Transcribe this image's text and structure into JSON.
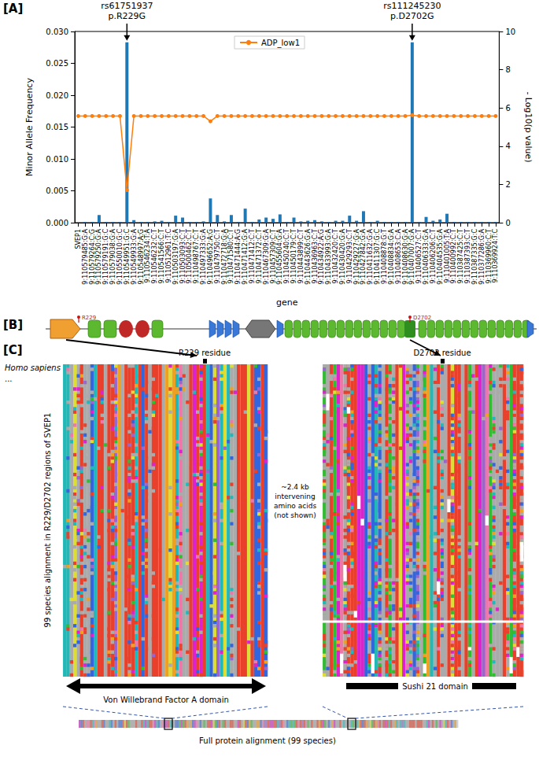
{
  "panel_labels": [
    "[A]",
    "[B]",
    "[C]"
  ],
  "chart_data": {
    "type": "bar",
    "xlabel": "gene",
    "ylabel": "Minor Allele Frequency",
    "y2label": "- Log10(p value)",
    "categories": [
      "SVEP1",
      "9:110579485:G:A",
      "9:110579264:C:G",
      "9:110579250:G:A",
      "9:110579191:G:C",
      "9:110579038:G:A",
      "9:110550010:G:C",
      "9:110549951:G:C",
      "9:110549933:G:A",
      "9:110548997:A:G",
      "9:110546234:T:A",
      "9:110546232:C:T",
      "9:110541566:C:T",
      "9:110512961:T:C",
      "9:110503197:G:A",
      "9:110503093:C:T",
      "9:110500462:C:T",
      "9:110498767:C:T",
      "9:110497333:G:A",
      "9:110496652:A:G",
      "9:110479750:C:T",
      "9:110472718:G:A",
      "9:110471580:C:T",
      "9:110471444:A:G",
      "9:110471412:G:A",
      "9:110471412:C:T",
      "9:110471372:C:T",
      "9:110467309:G:A",
      "9:110457309:C:T",
      "9:110455604:G:A",
      "9:110450240:C:T",
      "9:110450179:C:T",
      "9:110443899:C:T",
      "9:110443626:G:A",
      "9:110436963:C:T",
      "9:110434922:A:G",
      "9:110433993:G:A",
      "9:110432420:C:T",
      "9:110430420:G:A",
      "9:110429293:C:T",
      "9:110429227:G:A",
      "9:110427842:G:A",
      "9:110411632:G:A",
      "9:110411307:G:C",
      "9:110408878:G:T",
      "9:110408834:G:A",
      "9:110408653:C:A",
      "9:110408630:G:A",
      "9:110407007:G:A",
      "9:110406527:C:T",
      "9:110406333:G:A",
      "9:110406206:C:T",
      "9:110404535:G:A",
      "9:110401005:T:A",
      "9:110400992:C:T",
      "9:110387425:C:T",
      "9:110387393:C:T",
      "9:110387335:G:C",
      "9:110377286:G:A",
      "9:110369960:C:T",
      "9:110369924:T:C"
    ],
    "values": [
      0,
      0.0001,
      0.0001,
      0.0012,
      0.0001,
      0.0001,
      0.0001,
      0.0283,
      0.0004,
      0.0001,
      0.0001,
      0.0002,
      0.0003,
      0.0001,
      0.0011,
      0.0008,
      0.0001,
      0.0001,
      0.0002,
      0.0038,
      0.0012,
      0.0002,
      0.0012,
      0.0001,
      0.0022,
      0.0001,
      0.0005,
      0.0008,
      0.0006,
      0.0013,
      0.0001,
      0.0008,
      0.0002,
      0.0003,
      0.0004,
      0.0002,
      0.0001,
      0.0003,
      0.0003,
      0.0011,
      0.0003,
      0.0018,
      0.0001,
      0.0003,
      0.0001,
      0.0001,
      0.0001,
      0.0001,
      0.0283,
      0.0001,
      0.0009,
      0.0003,
      0.0005,
      0.0014,
      0.0001,
      0.0001,
      0.0001,
      0.0001,
      0.0001,
      0.0001,
      0.0001
    ],
    "color": "#1f77b4",
    "series": [
      {
        "name": "ADP_low1",
        "type": "line",
        "axis": "y2",
        "color": "#ff7f0e",
        "marker": "circle",
        "line_style": "solid",
        "values": [
          5.58,
          5.58,
          5.58,
          5.58,
          5.58,
          5.58,
          5.58,
          1.7,
          5.58,
          5.58,
          5.58,
          5.58,
          5.58,
          5.58,
          5.58,
          5.58,
          5.58,
          5.58,
          5.58,
          5.3,
          5.58,
          5.58,
          5.58,
          5.58,
          5.58,
          5.58,
          5.58,
          5.58,
          5.58,
          5.58,
          5.58,
          5.58,
          5.58,
          5.58,
          5.58,
          5.58,
          5.58,
          5.58,
          5.58,
          5.58,
          5.58,
          5.58,
          5.58,
          5.58,
          5.58,
          5.58,
          5.58,
          5.58,
          5.62,
          5.58,
          5.58,
          5.58,
          5.58,
          5.58,
          5.58,
          5.58,
          5.58,
          5.58,
          5.58,
          5.58,
          5.58
        ]
      }
    ],
    "ylim": [
      0,
      0.03
    ],
    "yticks": [
      {
        "value": 0,
        "label": "0.000"
      },
      {
        "value": 0.005,
        "label": "0.005"
      },
      {
        "value": 0.01,
        "label": "0.010"
      },
      {
        "value": 0.015,
        "label": "0.015"
      },
      {
        "value": 0.02,
        "label": "0.020"
      },
      {
        "value": 0.025,
        "label": "0.025"
      },
      {
        "value": 0.03,
        "label": "0.030"
      }
    ],
    "y2lim": [
      0,
      10
    ],
    "y2ticks": [
      0,
      2,
      4,
      6,
      8,
      10
    ],
    "grid": false,
    "legend": "upper center",
    "annotations": [
      {
        "lines": [
          "rs61751937",
          "p.R229G"
        ],
        "category": "9:110549951:G:C"
      },
      {
        "lines": [
          "rs111245230",
          "p.D2702G"
        ],
        "category": "9:110407007:G:A"
      }
    ]
  },
  "domain_diagram": {
    "markers": [
      "R229",
      "D2702"
    ]
  },
  "alignment": {
    "species_top": "Homo sapiens",
    "ellipsis": "...",
    "row_axis_label": "99 species alignment in R229/D2702 regions of SVEP1",
    "residues": [
      "R229 residue",
      "D2702 residue"
    ],
    "gap_note": [
      "~2.4 kb",
      "intervening",
      "amino acids",
      "(not shown)"
    ],
    "domains": [
      "Von Willebrand Factor A domain",
      "Sushi 21 domain"
    ],
    "overview_label": "Full protein alignment (99 species)"
  }
}
